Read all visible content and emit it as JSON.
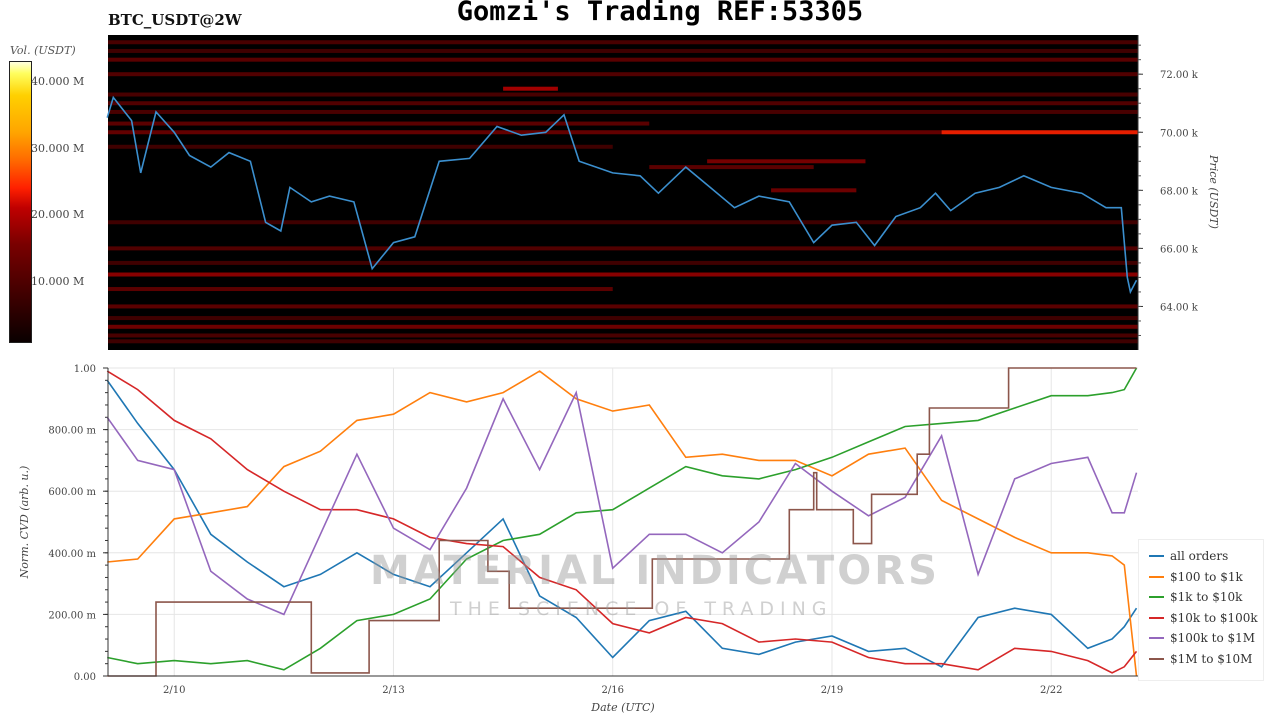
{
  "title": "Gomzi's Trading REF:53305",
  "symbol": "BTC_USDT@2W",
  "watermark": {
    "brand": "MATERIAL INDICATORS",
    "tagline": "THE SCIENCE OF TRADING"
  },
  "colorbar": {
    "title": "Vol. (USDT)",
    "range_M": [
      1,
      43
    ],
    "ticks": [
      {
        "v": 10,
        "label": "10.000 M"
      },
      {
        "v": 20,
        "label": "20.000 M"
      },
      {
        "v": 30,
        "label": "30.000 M"
      },
      {
        "v": 40,
        "label": "40.000 M"
      }
    ]
  },
  "chart_data": [
    {
      "type": "heatmap",
      "title": "BTC_USDT@2W",
      "ylabel": "Price (USDT)",
      "ylim": [
        62.5,
        73.35
      ],
      "xlim": [
        "02/09 02:15",
        "02/23 04:30"
      ],
      "yticks": [
        {
          "v": 64,
          "label": "64.00 k"
        },
        {
          "v": 66,
          "label": "66.00 k"
        },
        {
          "v": 68,
          "label": "68.00 k"
        },
        {
          "v": 70,
          "label": "70.00 k"
        },
        {
          "v": 72,
          "label": "72.00 k"
        }
      ],
      "colors": {
        "price_line": "#3b8fce",
        "background": "#000000"
      },
      "heatmap_bands": [
        {
          "price": 73.1,
          "from": "02/09 02:15",
          "to": "02/23 04:30",
          "vol_M": 4
        },
        {
          "price": 72.8,
          "from": "02/09 02:15",
          "to": "02/23 04:30",
          "vol_M": 3
        },
        {
          "price": 72.5,
          "from": "02/09 02:15",
          "to": "02/23 04:30",
          "vol_M": 6
        },
        {
          "price": 72.0,
          "from": "02/09 02:15",
          "to": "02/23 04:30",
          "vol_M": 5
        },
        {
          "price": 71.5,
          "from": "02/14 12:00",
          "to": "02/15 06:00",
          "vol_M": 14
        },
        {
          "price": 71.3,
          "from": "02/09 02:15",
          "to": "02/23 04:30",
          "vol_M": 4
        },
        {
          "price": 71.0,
          "from": "02/09 02:15",
          "to": "02/23 04:30",
          "vol_M": 5
        },
        {
          "price": 70.7,
          "from": "02/09 02:15",
          "to": "02/23 04:30",
          "vol_M": 4
        },
        {
          "price": 70.3,
          "from": "02/09 02:15",
          "to": "02/16 12:00",
          "vol_M": 6
        },
        {
          "price": 70.0,
          "from": "02/09 02:15",
          "to": "02/20 12:00",
          "vol_M": 7
        },
        {
          "price": 70.0,
          "from": "02/20 12:00",
          "to": "02/23 04:30",
          "vol_M": 24
        },
        {
          "price": 69.5,
          "from": "02/09 02:15",
          "to": "02/16 00:00",
          "vol_M": 3
        },
        {
          "price": 69.0,
          "from": "02/17 07:00",
          "to": "02/19 11:00",
          "vol_M": 9
        },
        {
          "price": 68.8,
          "from": "02/16 12:00",
          "to": "02/18 18:00",
          "vol_M": 6
        },
        {
          "price": 68.0,
          "from": "02/18 04:00",
          "to": "02/19 08:00",
          "vol_M": 8
        },
        {
          "price": 66.9,
          "from": "02/09 02:15",
          "to": "02/23 04:30",
          "vol_M": 3
        },
        {
          "price": 66.0,
          "from": "02/09 02:15",
          "to": "02/23 04:30",
          "vol_M": 5
        },
        {
          "price": 65.5,
          "from": "02/09 02:15",
          "to": "02/23 04:30",
          "vol_M": 3
        },
        {
          "price": 65.1,
          "from": "02/09 02:15",
          "to": "02/23 04:30",
          "vol_M": 11
        },
        {
          "price": 64.6,
          "from": "02/09 02:15",
          "to": "02/16 00:00",
          "vol_M": 6
        },
        {
          "price": 64.0,
          "from": "02/09 02:15",
          "to": "02/23 04:30",
          "vol_M": 6
        },
        {
          "price": 63.6,
          "from": "02/09 02:15",
          "to": "02/23 04:30",
          "vol_M": 3
        },
        {
          "price": 63.3,
          "from": "02/09 02:15",
          "to": "02/23 04:30",
          "vol_M": 8
        },
        {
          "price": 63.0,
          "from": "02/09 02:15",
          "to": "02/23 04:30",
          "vol_M": 4
        },
        {
          "price": 62.8,
          "from": "02/09 02:15",
          "to": "02/23 04:30",
          "vol_M": 3
        }
      ],
      "price_series": {
        "x": [
          "02/09 02:00",
          "02/09 04:00",
          "02/09 10:00",
          "02/09 13:00",
          "02/09 18:00",
          "02/10 00:00",
          "02/10 05:00",
          "02/10 12:00",
          "02/10 18:00",
          "02/11 01:00",
          "02/11 06:00",
          "02/11 11:00",
          "02/11 14:00",
          "02/11 21:00",
          "02/12 03:00",
          "02/12 11:00",
          "02/12 17:00",
          "02/13 00:00",
          "02/13 07:00",
          "02/13 15:00",
          "02/14 01:00",
          "02/14 10:00",
          "02/14 18:00",
          "02/15 02:00",
          "02/15 08:00",
          "02/15 13:00",
          "02/16 00:00",
          "02/16 09:00",
          "02/16 15:00",
          "02/17 00:00",
          "02/17 08:00",
          "02/17 16:00",
          "02/18 00:00",
          "02/18 10:00",
          "02/18 18:00",
          "02/19 00:00",
          "02/19 08:00",
          "02/19 14:00",
          "02/19 21:00",
          "02/20 05:00",
          "02/20 10:00",
          "02/20 15:00",
          "02/20 23:00",
          "02/21 07:00",
          "02/21 15:00",
          "02/22 00:00",
          "02/22 10:00",
          "02/22 18:00",
          "02/22 23:00",
          "02/23 01:00",
          "02/23 02:00",
          "02/23 04:00"
        ],
        "y": [
          70.5,
          71.2,
          70.4,
          68.6,
          70.7,
          70.0,
          69.2,
          68.8,
          69.3,
          69.0,
          66.9,
          66.6,
          68.1,
          67.6,
          67.8,
          67.6,
          65.3,
          66.2,
          66.4,
          69.0,
          69.1,
          70.2,
          69.9,
          70.0,
          70.6,
          69.0,
          68.6,
          68.5,
          67.9,
          68.8,
          68.1,
          67.4,
          67.8,
          67.6,
          66.2,
          66.8,
          66.9,
          66.1,
          67.1,
          67.4,
          67.9,
          67.3,
          67.9,
          68.1,
          68.5,
          68.1,
          67.9,
          67.4,
          67.4,
          65.0,
          64.5,
          64.9
        ]
      }
    },
    {
      "type": "line",
      "xlabel": "Date (UTC)",
      "ylabel": "Norm. CVD (arb. u.)",
      "ylim": [
        0,
        1
      ],
      "xlim": [
        "02/09 02:15",
        "02/23 04:30"
      ],
      "grid": true,
      "legend": "right",
      "xticks": [
        {
          "v": "02/10 00:00",
          "label": "2/10"
        },
        {
          "v": "02/13 00:00",
          "label": "2/13"
        },
        {
          "v": "02/16 00:00",
          "label": "2/16"
        },
        {
          "v": "02/19 00:00",
          "label": "2/19"
        },
        {
          "v": "02/22 00:00",
          "label": "2/22"
        }
      ],
      "yticks": [
        {
          "v": 0,
          "label": "0.00"
        },
        {
          "v": 0.2,
          "label": "200.00 m"
        },
        {
          "v": 0.4,
          "label": "400.00 m"
        },
        {
          "v": 0.6,
          "label": "600.00 m"
        },
        {
          "v": 0.8,
          "label": "800.00 m"
        },
        {
          "v": 1,
          "label": "1.00"
        }
      ],
      "x": [
        "02/09 02:00",
        "02/09 12:00",
        "02/10 00:00",
        "02/10 12:00",
        "02/11 00:00",
        "02/11 12:00",
        "02/12 00:00",
        "02/12 12:00",
        "02/13 00:00",
        "02/13 12:00",
        "02/14 00:00",
        "02/14 12:00",
        "02/15 00:00",
        "02/15 12:00",
        "02/16 00:00",
        "02/16 12:00",
        "02/17 00:00",
        "02/17 12:00",
        "02/18 00:00",
        "02/18 12:00",
        "02/19 00:00",
        "02/19 12:00",
        "02/20 00:00",
        "02/20 12:00",
        "02/21 00:00",
        "02/21 12:00",
        "02/22 00:00",
        "02/22 12:00",
        "02/22 20:00",
        "02/23 00:00",
        "02/23 04:00"
      ],
      "series": [
        {
          "name": "all orders",
          "color": "#1f77b4",
          "values": [
            0.96,
            0.82,
            0.67,
            0.46,
            0.37,
            0.29,
            0.33,
            0.4,
            0.33,
            0.29,
            0.4,
            0.51,
            0.26,
            0.19,
            0.06,
            0.18,
            0.21,
            0.09,
            0.07,
            0.11,
            0.13,
            0.08,
            0.09,
            0.03,
            0.19,
            0.22,
            0.2,
            0.09,
            0.12,
            0.16,
            0.22
          ]
        },
        {
          "name": "$100 to $1k",
          "color": "#ff7f0e",
          "values": [
            0.37,
            0.38,
            0.51,
            0.53,
            0.55,
            0.68,
            0.73,
            0.83,
            0.85,
            0.92,
            0.89,
            0.92,
            0.99,
            0.9,
            0.86,
            0.88,
            0.71,
            0.72,
            0.7,
            0.7,
            0.65,
            0.72,
            0.74,
            0.57,
            0.51,
            0.45,
            0.4,
            0.4,
            0.39,
            0.36,
            0.0
          ]
        },
        {
          "name": "$1k to $10k",
          "color": "#2ca02c",
          "values": [
            0.06,
            0.04,
            0.05,
            0.04,
            0.05,
            0.02,
            0.09,
            0.18,
            0.2,
            0.25,
            0.38,
            0.44,
            0.46,
            0.53,
            0.54,
            0.61,
            0.68,
            0.65,
            0.64,
            0.67,
            0.71,
            0.76,
            0.81,
            0.82,
            0.83,
            0.87,
            0.91,
            0.91,
            0.92,
            0.93,
            1.0
          ]
        },
        {
          "name": "$10k to $100k",
          "color": "#d62728",
          "values": [
            0.99,
            0.93,
            0.83,
            0.77,
            0.67,
            0.6,
            0.54,
            0.54,
            0.51,
            0.45,
            0.43,
            0.42,
            0.32,
            0.28,
            0.17,
            0.14,
            0.19,
            0.17,
            0.11,
            0.12,
            0.11,
            0.06,
            0.04,
            0.04,
            0.02,
            0.09,
            0.08,
            0.05,
            0.01,
            0.03,
            0.08
          ]
        },
        {
          "name": "$100k to $1M",
          "color": "#9467bd",
          "values": [
            0.84,
            0.7,
            0.67,
            0.34,
            0.25,
            0.2,
            0.46,
            0.72,
            0.48,
            0.41,
            0.61,
            0.9,
            0.67,
            0.92,
            0.35,
            0.46,
            0.46,
            0.4,
            0.5,
            0.69,
            0.6,
            0.52,
            0.58,
            0.78,
            0.33,
            0.64,
            0.69,
            0.71,
            0.53,
            0.53,
            0.66
          ]
        },
        {
          "name": "$1M to $10M",
          "color": "#8c564b",
          "step": true,
          "x": [
            "02/09 02:00",
            "02/09 18:00",
            "02/11 21:00",
            "02/12 16:00",
            "02/13 15:00",
            "02/14 07:00",
            "02/14 14:00",
            "02/16 13:00",
            "02/18 10:00",
            "02/18 18:00",
            "02/18 19:00",
            "02/19 07:00",
            "02/19 13:00",
            "02/20 04:00",
            "02/20 08:00",
            "02/21 10:00",
            "02/23 04:00"
          ],
          "values": [
            0.0,
            0.24,
            0.01,
            0.18,
            0.44,
            0.34,
            0.22,
            0.38,
            0.54,
            0.66,
            0.54,
            0.43,
            0.59,
            0.72,
            0.87,
            1.0,
            1.0
          ]
        }
      ]
    }
  ]
}
